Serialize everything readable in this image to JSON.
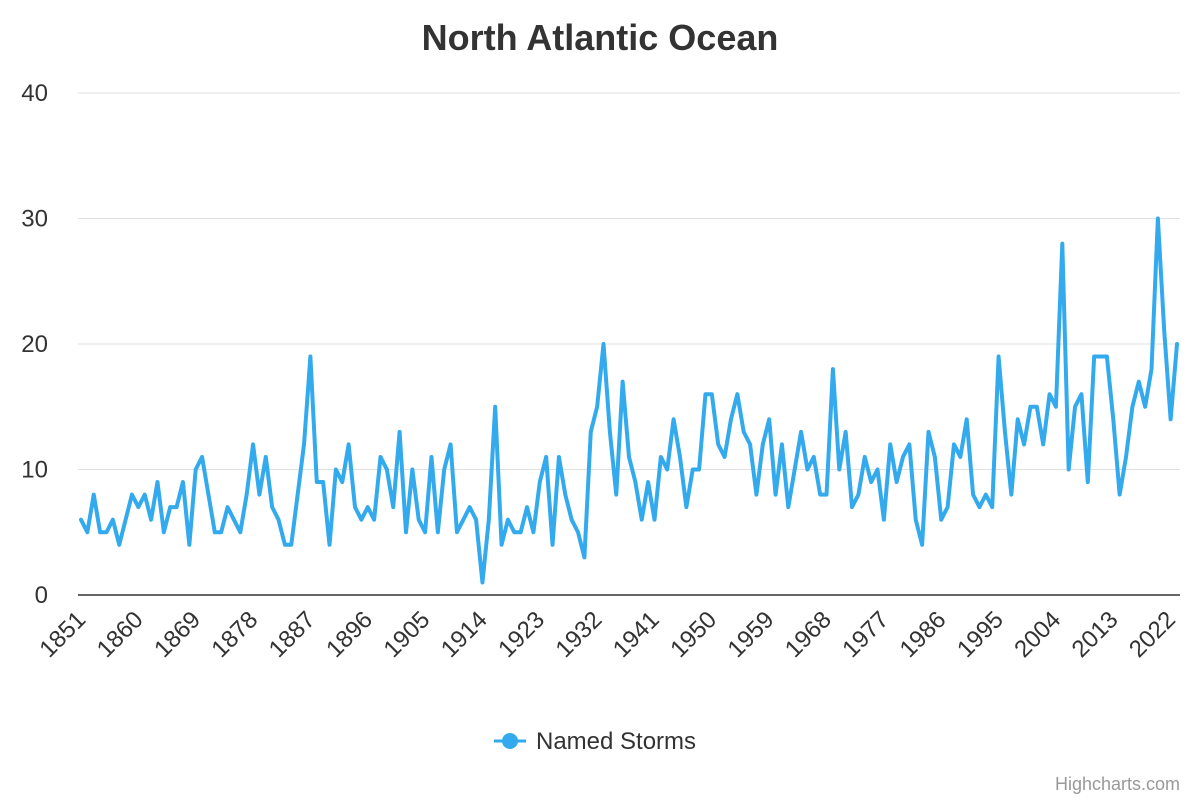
{
  "credits": "Highcharts.com",
  "colors": {
    "series": "#33aaee",
    "grid": "#e0e0e0",
    "axis": "#333333",
    "text": "#333333",
    "credits": "#999999"
  },
  "chart_data": {
    "type": "line",
    "title": "North Atlantic Ocean",
    "xlabel": "",
    "ylabel": "",
    "ylim": [
      0,
      40
    ],
    "yticks": [
      0,
      10,
      20,
      30,
      40
    ],
    "x_start": 1851,
    "x_end": 2023,
    "xtick_labels": [
      "1851",
      "1860",
      "1869",
      "1878",
      "1887",
      "1896",
      "1905",
      "1914",
      "1923",
      "1932",
      "1941",
      "1950",
      "1959",
      "1968",
      "1977",
      "1986",
      "1995",
      "2004",
      "2013",
      "2022"
    ],
    "grid": true,
    "legend_position": "bottom-center",
    "series": [
      {
        "name": "Named Storms",
        "color": "#33aaee",
        "values": [
          6,
          5,
          8,
          5,
          5,
          6,
          4,
          6,
          8,
          7,
          8,
          6,
          9,
          5,
          7,
          7,
          9,
          4,
          10,
          11,
          8,
          5,
          5,
          7,
          6,
          5,
          8,
          12,
          8,
          11,
          7,
          6,
          4,
          4,
          8,
          12,
          19,
          9,
          9,
          4,
          10,
          9,
          12,
          7,
          6,
          7,
          6,
          11,
          10,
          7,
          13,
          5,
          10,
          6,
          5,
          11,
          5,
          10,
          12,
          5,
          6,
          7,
          6,
          1,
          6,
          15,
          4,
          6,
          5,
          5,
          7,
          5,
          9,
          11,
          4,
          11,
          8,
          6,
          5,
          3,
          13,
          15,
          20,
          13,
          8,
          17,
          11,
          9,
          6,
          9,
          6,
          11,
          10,
          14,
          11,
          7,
          10,
          10,
          16,
          16,
          12,
          11,
          14,
          16,
          13,
          12,
          8,
          12,
          14,
          8,
          12,
          7,
          10,
          13,
          10,
          11,
          8,
          8,
          18,
          10,
          13,
          7,
          8,
          11,
          9,
          10,
          6,
          12,
          9,
          11,
          12,
          6,
          4,
          13,
          11,
          6,
          7,
          12,
          11,
          14,
          8,
          7,
          8,
          7,
          19,
          13,
          8,
          14,
          12,
          15,
          15,
          12,
          16,
          15,
          28,
          10,
          15,
          16,
          9,
          19,
          19,
          19,
          14,
          8,
          11,
          15,
          17,
          15,
          18,
          30,
          21,
          14,
          20
        ]
      }
    ]
  }
}
